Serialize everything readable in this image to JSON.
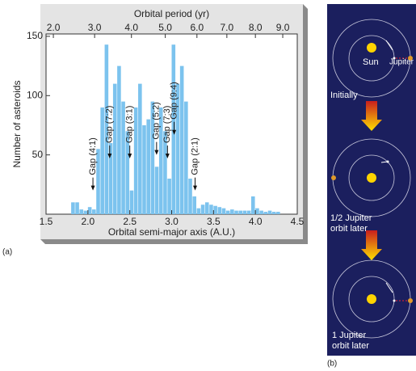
{
  "chart_data": {
    "type": "histogram",
    "title": "Orbital period (yr)",
    "xlabel": "Orbital semi-major axis (A.U.)",
    "ylabel": "Number of asteroids",
    "color": "#7cc3ee",
    "bins": [
      1.5,
      1.55,
      1.6,
      1.65,
      1.7,
      1.75,
      1.8,
      1.85,
      1.9,
      1.95,
      2.0,
      2.05,
      2.1,
      2.15,
      2.2,
      2.25,
      2.3,
      2.35,
      2.4,
      2.45,
      2.5,
      2.55,
      2.6,
      2.65,
      2.7,
      2.75,
      2.8,
      2.85,
      2.9,
      2.95,
      3.0,
      3.05,
      3.1,
      3.15,
      3.2,
      3.25,
      3.3,
      3.35,
      3.4,
      3.45,
      3.5,
      3.55,
      3.6,
      3.65,
      3.7,
      3.75,
      3.8,
      3.85,
      3.9,
      3.95,
      4.0,
      4.05,
      4.1,
      4.15,
      4.2,
      4.25,
      4.3,
      4.35,
      4.4,
      4.45,
      4.5
    ],
    "values": [
      0,
      0,
      0,
      0,
      0,
      0,
      10,
      10,
      4,
      3,
      6,
      4,
      55,
      90,
      143,
      60,
      110,
      125,
      95,
      70,
      20,
      90,
      110,
      75,
      80,
      95,
      40,
      90,
      70,
      30,
      143,
      110,
      125,
      95,
      30,
      15,
      5,
      8,
      10,
      8,
      7,
      6,
      5,
      3,
      4,
      3,
      3,
      3,
      3,
      15,
      5,
      3,
      2,
      3,
      2,
      2,
      0,
      0,
      0,
      0
    ],
    "xlim": [
      1.5,
      4.5
    ],
    "ylim": [
      0,
      152
    ],
    "xticks": [
      1.5,
      {
        "value": 2,
        "label": "2.0"
      },
      2.5,
      {
        "value": 3,
        "label": "3.0"
      },
      3.5,
      {
        "value": 4,
        "label": "4.0"
      },
      4.5
    ],
    "yticks": [
      50,
      100,
      150
    ],
    "x2ticks": [
      {
        "value": 2,
        "label": "2.0"
      },
      {
        "value": 3,
        "label": "3.0"
      },
      {
        "value": 4,
        "label": "4.0"
      },
      {
        "value": 5,
        "label": "5.0"
      },
      {
        "value": 6,
        "label": "6.0"
      },
      {
        "value": 7,
        "label": "7.0"
      },
      {
        "value": 8,
        "label": "8.0"
      },
      {
        "value": 9,
        "label": "9.0"
      }
    ],
    "annotations": [
      {
        "text": "Gap (4:1)",
        "x": 2.06,
        "y": 20
      },
      {
        "text": "Gap (7:2)",
        "x": 2.26,
        "y": 47
      },
      {
        "text": "Gap (3:1)",
        "x": 2.5,
        "y": 47
      },
      {
        "text": "Gap (5:2)",
        "x": 2.82,
        "y": 50
      },
      {
        "text": "Gap (7:3)",
        "x": 2.95,
        "y": 47
      },
      {
        "text": "Gap (9:4)",
        "x": 3.03,
        "y": 67
      },
      {
        "text": "Gap (2:1)",
        "x": 3.28,
        "y": 20
      }
    ]
  },
  "panel_a_label": "(a)",
  "panel_b": {
    "label": "(b)",
    "sun": "Sun",
    "jupiter": "Jupiter",
    "stages": [
      [
        "Initially"
      ],
      [
        "1/2 Jupiter",
        "orbit later"
      ],
      [
        "1 Jupiter",
        "orbit later"
      ]
    ]
  }
}
